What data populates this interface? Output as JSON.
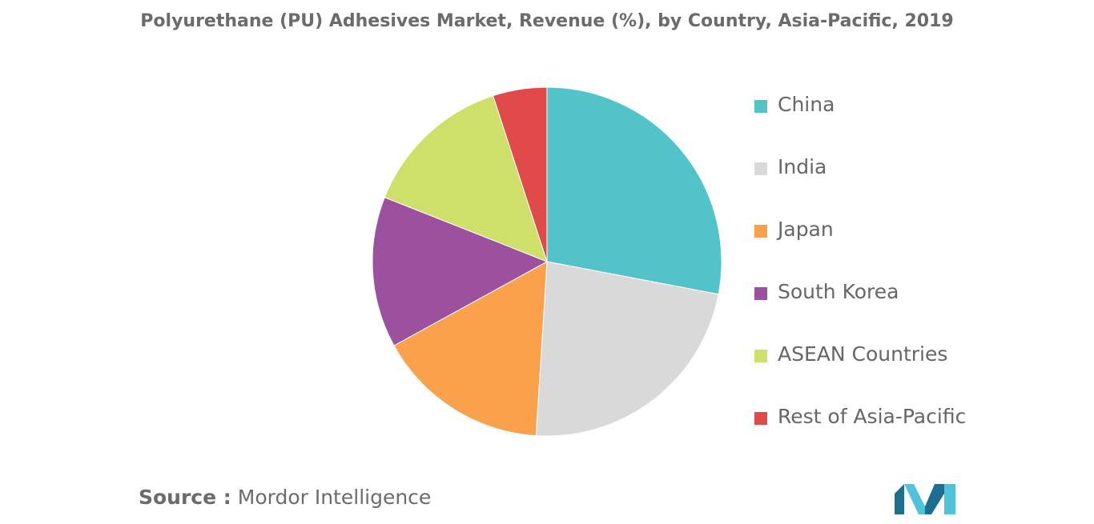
{
  "chart_data": {
    "type": "pie",
    "title": "Polyurethane (PU) Adhesives Market, Revenue (%), by Country, Asia-Pacific, 2019",
    "series": [
      {
        "name": "China",
        "value": 28,
        "color": "#52c3c9"
      },
      {
        "name": "India",
        "value": 23,
        "color": "#d9d9d9"
      },
      {
        "name": "Japan",
        "value": 16,
        "color": "#fba14b"
      },
      {
        "name": "South Korea",
        "value": 14,
        "color": "#9b519e"
      },
      {
        "name": "ASEAN Countries",
        "value": 14,
        "color": "#cfe06a"
      },
      {
        "name": "Rest of Asia-Pacific",
        "value": 5,
        "color": "#e04a4a"
      }
    ],
    "legend_position": "right"
  },
  "source": {
    "label": "Source :",
    "text": "Mordor Intelligence"
  },
  "logo": {
    "name": "mordor-intelligence-logo",
    "colors": [
      "#1e6f8f",
      "#4fc3d9"
    ]
  }
}
